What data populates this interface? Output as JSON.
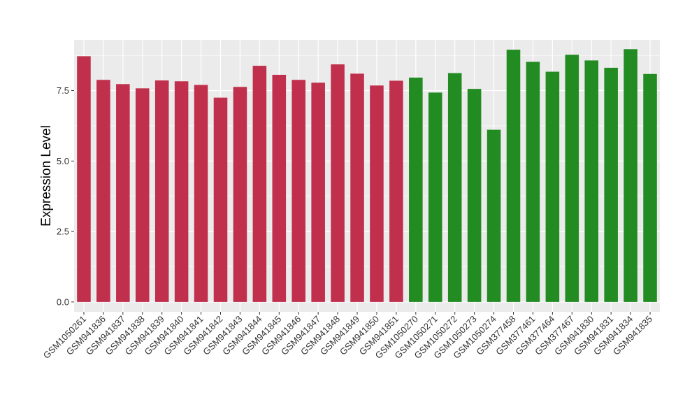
{
  "chart_data": {
    "type": "bar",
    "title": "",
    "xlabel": "",
    "ylabel": "Expression Level",
    "ylim": [
      -0.35,
      9.3
    ],
    "yticks": [
      0.0,
      2.5,
      5.0,
      7.5
    ],
    "ytick_labels": [
      "0.0",
      "2.5",
      "5.0",
      "7.5"
    ],
    "grid": true,
    "legend": "none",
    "panel_background": "#EBEBEB",
    "gridline_color": "#FFFFFF",
    "colors": {
      "group_a": "#C0304C",
      "group_b": "#228B22"
    },
    "categories": [
      "GSM1050261",
      "GSM941836",
      "GSM941837",
      "GSM941838",
      "GSM941839",
      "GSM941840",
      "GSM941841",
      "GSM941842",
      "GSM941843",
      "GSM941844",
      "GSM941845",
      "GSM941846",
      "GSM941847",
      "GSM941848",
      "GSM941849",
      "GSM941850",
      "GSM941851",
      "GSM1050270",
      "GSM1050271",
      "GSM1050272",
      "GSM1050273",
      "GSM1050274",
      "GSM377458",
      "GSM377461",
      "GSM377464",
      "GSM377467",
      "GSM941830",
      "GSM941831",
      "GSM941834",
      "GSM941835"
    ],
    "values": [
      8.72,
      7.88,
      7.73,
      7.58,
      7.86,
      7.83,
      7.7,
      7.25,
      7.63,
      8.38,
      8.06,
      7.88,
      7.78,
      8.43,
      8.1,
      7.68,
      7.85,
      7.96,
      7.43,
      8.12,
      7.56,
      6.11,
      8.95,
      8.52,
      8.17,
      8.77,
      8.57,
      8.31,
      8.97,
      8.09
    ],
    "groups": [
      "a",
      "a",
      "a",
      "a",
      "a",
      "a",
      "a",
      "a",
      "a",
      "a",
      "a",
      "a",
      "a",
      "a",
      "a",
      "a",
      "a",
      "b",
      "b",
      "b",
      "b",
      "b",
      "b",
      "b",
      "b",
      "b",
      "b",
      "b",
      "b",
      "b"
    ]
  }
}
